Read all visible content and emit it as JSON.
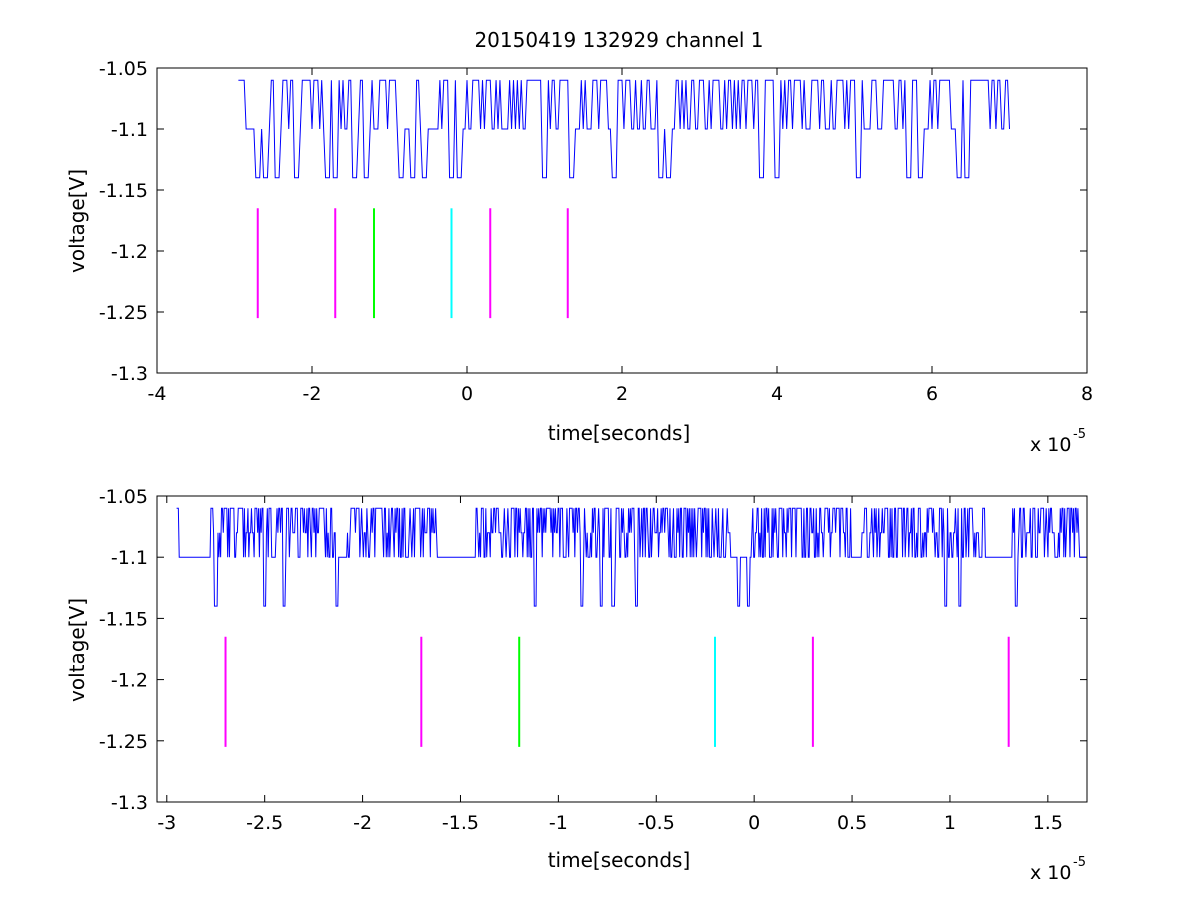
{
  "chart_data": [
    {
      "type": "line",
      "title": "20150419 132929 channel 1",
      "xlabel": "time[seconds]",
      "ylabel": "voltage[V]",
      "x_exponent_base": "x 10",
      "x_exponent": "-5",
      "xlim": [
        -4,
        8
      ],
      "ylim": [
        -1.3,
        -1.05
      ],
      "xticks": [
        -4,
        -2,
        0,
        2,
        4,
        6,
        8
      ],
      "xtick_labels": [
        "-4",
        "-2",
        "0",
        "2",
        "4",
        "6",
        "8"
      ],
      "yticks": [
        -1.3,
        -1.25,
        -1.2,
        -1.15,
        -1.1,
        -1.05
      ],
      "ytick_labels": [
        "-1.3",
        "-1.25",
        "-1.2",
        "-1.15",
        "-1.1",
        "-1.05"
      ],
      "grid": false,
      "series": [
        {
          "color": "#0000ff",
          "x_start": -2.95,
          "x_end": 7.0,
          "levels": [
            -1.06,
            -1.1,
            -1.14
          ],
          "baseline": -1.1,
          "dips": [
            -2.7,
            -2.6,
            -2.45,
            -2.2,
            -1.8,
            -1.7,
            -1.45,
            -1.3,
            -0.85,
            -0.7,
            -0.55,
            -0.2,
            -0.1,
            1.0,
            1.35,
            1.9,
            2.5,
            2.6,
            3.8,
            4.0,
            5.05,
            5.7,
            5.85,
            6.35,
            6.45
          ],
          "dense_ranges": [
            [
              -2.7,
              -1.5
            ],
            [
              -1.4,
              -0.9
            ],
            [
              -0.75,
              1.3
            ],
            [
              1.4,
              7.0
            ]
          ]
        }
      ],
      "markers": [
        {
          "x": -2.7,
          "y_top": -1.165,
          "y_bottom": -1.255,
          "color": "#ff00ff"
        },
        {
          "x": -1.7,
          "y_top": -1.165,
          "y_bottom": -1.255,
          "color": "#ff00ff"
        },
        {
          "x": -1.2,
          "y_top": -1.165,
          "y_bottom": -1.255,
          "color": "#00ff00"
        },
        {
          "x": -0.2,
          "y_top": -1.165,
          "y_bottom": -1.255,
          "color": "#00ffff"
        },
        {
          "x": 0.3,
          "y_top": -1.165,
          "y_bottom": -1.255,
          "color": "#ff00ff"
        },
        {
          "x": 1.3,
          "y_top": -1.165,
          "y_bottom": -1.255,
          "color": "#ff00ff"
        }
      ]
    },
    {
      "type": "line",
      "title": "",
      "xlabel": "time[seconds]",
      "ylabel": "voltage[V]",
      "x_exponent_base": "x 10",
      "x_exponent": "-5",
      "xlim": [
        -3.05,
        1.7
      ],
      "ylim": [
        -1.3,
        -1.05
      ],
      "xticks": [
        -3,
        -2.5,
        -2,
        -1.5,
        -1,
        -0.5,
        0,
        0.5,
        1,
        1.5
      ],
      "xtick_labels": [
        "-3",
        "-2.5",
        "-2",
        "-1.5",
        "-1",
        "-0.5",
        "0",
        "0.5",
        "1",
        "1.5"
      ],
      "yticks": [
        -1.3,
        -1.25,
        -1.2,
        -1.15,
        -1.1,
        -1.05
      ],
      "ytick_labels": [
        "-1.3",
        "-1.25",
        "-1.2",
        "-1.15",
        "-1.1",
        "-1.05"
      ],
      "grid": false,
      "series": [
        {
          "color": "#0000ff",
          "x_start": -2.95,
          "x_end": 1.7,
          "levels": [
            -1.06,
            -1.08,
            -1.1,
            -1.12,
            -1.14
          ],
          "baseline": -1.1,
          "dips": [
            -2.75,
            -2.5,
            -2.4,
            -2.13,
            -1.12,
            -0.88,
            -0.78,
            -0.72,
            -0.6,
            -0.08,
            -0.03,
            0.98,
            1.05,
            1.34
          ],
          "dense_ranges": [
            [
              -2.78,
              -2.12
            ],
            [
              -2.08,
              -1.62
            ],
            [
              -1.42,
              -0.78
            ],
            [
              -0.78,
              -0.12
            ],
            [
              -0.03,
              0.5
            ],
            [
              0.55,
              1.18
            ],
            [
              1.32,
              1.67
            ]
          ]
        }
      ],
      "markers": [
        {
          "x": -2.7,
          "y_top": -1.165,
          "y_bottom": -1.255,
          "color": "#ff00ff"
        },
        {
          "x": -1.7,
          "y_top": -1.165,
          "y_bottom": -1.255,
          "color": "#ff00ff"
        },
        {
          "x": -1.2,
          "y_top": -1.165,
          "y_bottom": -1.255,
          "color": "#00ff00"
        },
        {
          "x": -0.2,
          "y_top": -1.165,
          "y_bottom": -1.255,
          "color": "#00ffff"
        },
        {
          "x": 0.3,
          "y_top": -1.165,
          "y_bottom": -1.255,
          "color": "#ff00ff"
        },
        {
          "x": 1.3,
          "y_top": -1.165,
          "y_bottom": -1.255,
          "color": "#ff00ff"
        }
      ]
    }
  ]
}
